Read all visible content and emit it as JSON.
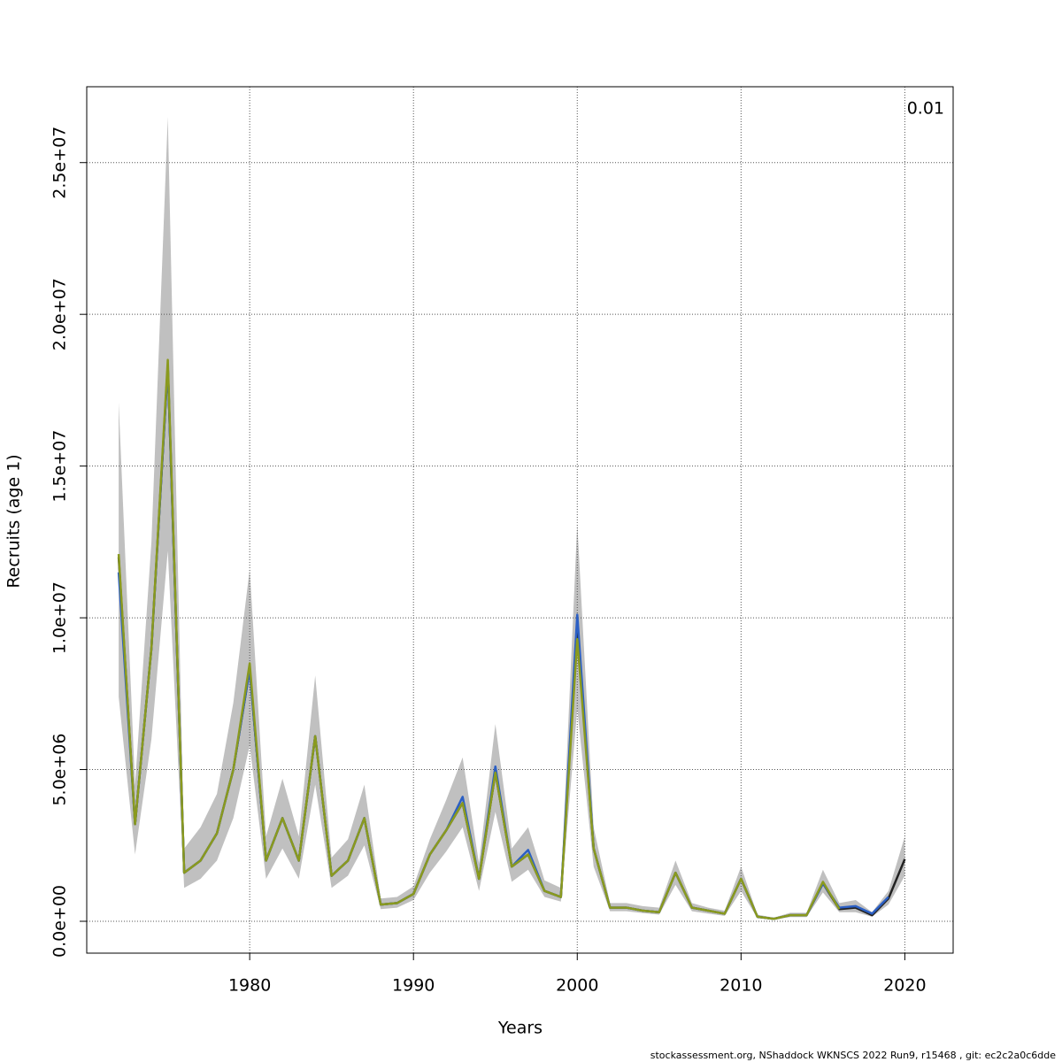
{
  "chart_data": {
    "type": "line",
    "ylabel": "Recruits (age 1)",
    "xlabel": "Years",
    "annotation": "0.01",
    "caption": "stockassessment.org, NShaddock  WKNSCS  2022  Run9, r15468 , git: ec2c2a0c6dde",
    "xlim": [
      1970.05,
      2022.95
    ],
    "ylim": [
      -1050000,
      27500000
    ],
    "xticks": [
      1980,
      1990,
      2000,
      2010,
      2020
    ],
    "yticks": [
      {
        "value": 0,
        "label": "0.0e+00"
      },
      {
        "value": 5000000,
        "label": "5.0e+06"
      },
      {
        "value": 10000000,
        "label": "1.0e+07"
      },
      {
        "value": 15000000,
        "label": "1.5e+07"
      },
      {
        "value": 20000000,
        "label": "2.0e+07"
      },
      {
        "value": 25000000,
        "label": "2.5e+07"
      }
    ],
    "grid": true,
    "x": [
      1972,
      1973,
      1974,
      1975,
      1976,
      1977,
      1978,
      1979,
      1980,
      1981,
      1982,
      1983,
      1984,
      1985,
      1986,
      1987,
      1988,
      1989,
      1990,
      1991,
      1992,
      1993,
      1994,
      1995,
      1996,
      1997,
      1998,
      1999,
      2000,
      2001,
      2002,
      2003,
      2004,
      2005,
      2006,
      2007,
      2008,
      2009,
      2010,
      2011,
      2012,
      2013,
      2014,
      2015,
      2016,
      2017,
      2018,
      2019,
      2020
    ],
    "band": {
      "color": "#c0c0c0",
      "upper": [
        17100000.0,
        4500000.0,
        12500000.0,
        26500000.0,
        2400000.0,
        3100000.0,
        4200000.0,
        7200000.0,
        11600000.0,
        2800000.0,
        4700000.0,
        2800000.0,
        8100000.0,
        2100000.0,
        2700000.0,
        4500000.0,
        750000.0,
        800000.0,
        1150000.0,
        2700000.0,
        4000000.0,
        5400000.0,
        1900000.0,
        6500000.0,
        2400000.0,
        3100000.0,
        1350000.0,
        1100000.0,
        13100000.0,
        3100000.0,
        600000.0,
        600000.0,
        500000.0,
        450000.0,
        2000000.0,
        600000.0,
        450000.0,
        350000.0,
        1800000.0,
        220000.0,
        120000.0,
        280000.0,
        280000.0,
        1700000.0,
        600000.0,
        700000.0,
        300000.0,
        1000000.0,
        2800000.0
      ],
      "lower": [
        7400000.0,
        2200000.0,
        6000000.0,
        12200000.0,
        1100000.0,
        1400000.0,
        2000000.0,
        3400000.0,
        5800000.0,
        1400000.0,
        2400000.0,
        1400000.0,
        4500000.0,
        1100000.0,
        1500000.0,
        2500000.0,
        400000.0,
        450000.0,
        700000.0,
        1600000.0,
        2300000.0,
        3100000.0,
        1000000.0,
        3600000.0,
        1300000.0,
        1700000.0,
        800000.0,
        650000.0,
        7000000.0,
        1800000.0,
        330000.0,
        330000.0,
        270000.0,
        220000.0,
        1200000.0,
        330000.0,
        250000.0,
        180000.0,
        1000000.0,
        100000.0,
        50000.0,
        140000.0,
        140000.0,
        950000.0,
        300000.0,
        300000.0,
        150000.0,
        550000.0,
        1500000.0
      ]
    },
    "series": [
      {
        "color": "#222222",
        "values": [
          12000000.0,
          3200000.0,
          9000000.0,
          18300000.0,
          1600000.0,
          2000000.0,
          2900000.0,
          5000000.0,
          8300000.0,
          2000000.0,
          3400000.0,
          2000000.0,
          6100000.0,
          1500000.0,
          2000000.0,
          3400000.0,
          550000.0,
          600000.0,
          900000.0,
          2200000.0,
          3000000.0,
          3900000.0,
          1400000.0,
          4900000.0,
          1800000.0,
          2200000.0,
          1000000.0,
          800000.0,
          9600000.0,
          2400000.0,
          450000.0,
          450000.0,
          350000.0,
          300000.0,
          1600000.0,
          450000.0,
          350000.0,
          250000.0,
          1400000.0,
          150000.0,
          80000.0,
          200000.0,
          200000.0,
          1250000.0,
          400000.0,
          450000.0,
          200000.0,
          750000.0,
          2050000.0
        ]
      },
      {
        "color": "#2b5fc4",
        "values": [
          11500000.0,
          3200000.0,
          9000000.0,
          18300000.0,
          1600000.0,
          2000000.0,
          2900000.0,
          5000000.0,
          8300000.0,
          2000000.0,
          3400000.0,
          2000000.0,
          6100000.0,
          1500000.0,
          2000000.0,
          3400000.0,
          550000.0,
          600000.0,
          900000.0,
          2200000.0,
          3000000.0,
          4100000.0,
          1400000.0,
          5100000.0,
          1800000.0,
          2350000.0,
          1000000.0,
          800000.0,
          10100000.0,
          2400000.0,
          450000.0,
          450000.0,
          350000.0,
          300000.0,
          1600000.0,
          450000.0,
          350000.0,
          250000.0,
          1400000.0,
          150000.0,
          80000.0,
          200000.0,
          200000.0,
          1250000.0,
          450000.0,
          500000.0,
          250000.0,
          800000.0,
          null
        ]
      },
      {
        "color": "#8a9a1e",
        "values": [
          12100000.0,
          3200000.0,
          9000000.0,
          18500000.0,
          1600000.0,
          2000000.0,
          2900000.0,
          5000000.0,
          8500000.0,
          2000000.0,
          3400000.0,
          2000000.0,
          6100000.0,
          1500000.0,
          2000000.0,
          3400000.0,
          550000.0,
          600000.0,
          900000.0,
          2200000.0,
          3000000.0,
          3900000.0,
          1400000.0,
          4900000.0,
          1800000.0,
          2200000.0,
          1000000.0,
          800000.0,
          9300000.0,
          2400000.0,
          450000.0,
          450000.0,
          350000.0,
          300000.0,
          1600000.0,
          450000.0,
          350000.0,
          250000.0,
          1400000.0,
          150000.0,
          80000.0,
          200000.0,
          200000.0,
          1300000.0,
          400000.0,
          null,
          null,
          null,
          null
        ]
      }
    ]
  }
}
